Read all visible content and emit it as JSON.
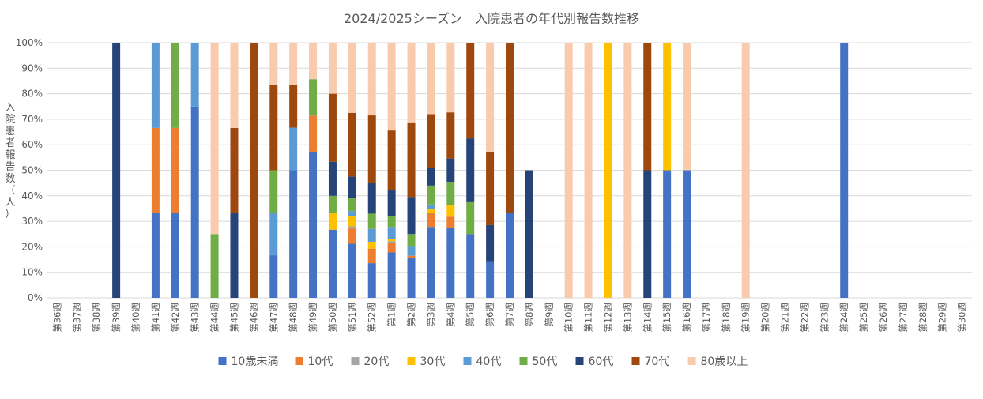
{
  "chart_data": {
    "type": "bar",
    "stacked": true,
    "title": "2024/2025シーズン　入院患者の年代別報告数推移",
    "ylabel": "入院患者報告数（人）",
    "xlabel": "",
    "ylim": [
      0,
      100
    ],
    "yticks": [
      "0%",
      "10%",
      "20%",
      "30%",
      "40%",
      "50%",
      "60%",
      "70%",
      "80%",
      "90%",
      "100%"
    ],
    "grid": true,
    "legend_position": "bottom",
    "categories": [
      "第36週",
      "第37週",
      "第38週",
      "第39週",
      "第40週",
      "第41週",
      "第42週",
      "第43週",
      "第44週",
      "第45週",
      "第46週",
      "第47週",
      "第48週",
      "第49週",
      "第50週",
      "第51週",
      "第52週",
      "第1週",
      "第2週",
      "第3週",
      "第4週",
      "第5週",
      "第6週",
      "第7週",
      "第8週",
      "第9週",
      "第10週",
      "第11週",
      "第12週",
      "第13週",
      "第14週",
      "第15週",
      "第16週",
      "第17週",
      "第18週",
      "第19週",
      "第20週",
      "第21週",
      "第22週",
      "第23週",
      "第24週",
      "第25週",
      "第26週",
      "第27週",
      "第28週",
      "第29週",
      "第30週"
    ],
    "series": [
      {
        "name": "10歳未満",
        "color": "#4472C4",
        "values": [
          0,
          0,
          0,
          0,
          0,
          33.3,
          33.3,
          75,
          0,
          0,
          0,
          16.7,
          50,
          57.1,
          26.7,
          21.2,
          13.6,
          17.8,
          15.7,
          27.8,
          27.3,
          25,
          14.3,
          33.3,
          0,
          0,
          0,
          0,
          0,
          0,
          0,
          50,
          50,
          0,
          0,
          0,
          0,
          0,
          0,
          0,
          100,
          0,
          0,
          0,
          0,
          0,
          0
        ]
      },
      {
        "name": "10代",
        "color": "#ED7D31",
        "values": [
          0,
          0,
          0,
          0,
          0,
          33.3,
          33.3,
          0,
          0,
          0,
          0,
          0,
          0,
          14.3,
          0,
          6,
          5.7,
          3.8,
          0.8,
          5.5,
          4.5,
          0,
          0,
          0,
          0,
          0,
          0,
          0,
          0,
          0,
          0,
          0,
          0,
          0,
          0,
          0,
          0,
          0,
          0,
          0,
          0,
          0,
          0,
          0,
          0,
          0,
          0
        ]
      },
      {
        "name": "20代",
        "color": "#A5A5A5",
        "values": [
          0,
          0,
          0,
          0,
          0,
          0,
          0,
          0,
          0,
          0,
          0,
          0,
          0,
          0,
          0,
          0.8,
          0,
          0.6,
          0,
          0,
          0,
          0,
          0,
          0,
          0,
          0,
          0,
          0,
          0,
          0,
          0,
          0,
          0,
          0,
          0,
          0,
          0,
          0,
          0,
          0,
          0,
          0,
          0,
          0,
          0,
          0,
          0
        ]
      },
      {
        "name": "30代",
        "color": "#FFC000",
        "values": [
          0,
          0,
          0,
          0,
          0,
          0,
          0,
          0,
          0,
          0,
          0,
          0,
          0,
          0,
          6.6,
          4,
          2.7,
          1,
          0,
          1.5,
          4.5,
          0,
          0,
          0,
          0,
          0,
          0,
          0,
          100,
          0,
          0,
          50,
          0,
          0,
          0,
          0,
          0,
          0,
          0,
          0,
          0,
          0,
          0,
          0,
          0,
          0,
          0
        ]
      },
      {
        "name": "40代",
        "color": "#5B9BD5",
        "values": [
          0,
          0,
          0,
          0,
          0,
          33.4,
          0,
          25,
          0,
          0,
          0,
          16.7,
          16.7,
          0,
          0,
          2,
          5,
          4.6,
          3.8,
          1.8,
          0,
          0,
          0,
          0,
          0,
          0,
          0,
          0,
          0,
          0,
          0,
          0,
          0,
          0,
          0,
          0,
          0,
          0,
          0,
          0,
          0,
          0,
          0,
          0,
          0,
          0,
          0
        ]
      },
      {
        "name": "50代",
        "color": "#70AD47",
        "values": [
          0,
          0,
          0,
          0,
          0,
          0,
          33.4,
          0,
          25,
          0,
          0,
          16.6,
          0,
          14.3,
          6.7,
          5,
          6,
          4.2,
          4.7,
          7.4,
          9.2,
          12.5,
          0,
          0,
          0,
          0,
          0,
          0,
          0,
          0,
          0,
          0,
          0,
          0,
          0,
          0,
          0,
          0,
          0,
          0,
          0,
          0,
          0,
          0,
          0,
          0,
          0
        ]
      },
      {
        "name": "60代",
        "color": "#264478",
        "values": [
          0,
          0,
          0,
          100,
          0,
          0,
          0,
          0,
          0,
          33.3,
          0,
          0,
          0,
          0,
          13.3,
          8.5,
          12,
          10.3,
          14.5,
          7,
          9.1,
          25,
          14.2,
          0,
          50,
          0,
          0,
          0,
          0,
          0,
          50,
          0,
          0,
          0,
          0,
          0,
          0,
          0,
          0,
          0,
          0,
          0,
          0,
          0,
          0,
          0,
          0
        ]
      },
      {
        "name": "70代",
        "color": "#9E480E",
        "values": [
          0,
          0,
          0,
          0,
          0,
          0,
          0,
          0,
          0,
          33.3,
          100,
          33.3,
          16.6,
          0,
          26.7,
          25,
          26.5,
          23.3,
          29,
          21,
          18.1,
          37.5,
          28.5,
          66.7,
          0,
          0,
          0,
          0,
          0,
          0,
          50,
          0,
          0,
          0,
          0,
          0,
          0,
          0,
          0,
          0,
          0,
          0,
          0,
          0,
          0,
          0,
          0
        ]
      },
      {
        "name": "80歳以上",
        "color": "#F8CBAD",
        "values": [
          0,
          0,
          0,
          0,
          0,
          0,
          0,
          0,
          75,
          33.4,
          0,
          16.7,
          16.7,
          14.3,
          20,
          27.5,
          28.5,
          34.4,
          31.5,
          28,
          27.3,
          0,
          43,
          0,
          0,
          0,
          100,
          100,
          0,
          100,
          0,
          0,
          50,
          0,
          0,
          100,
          0,
          0,
          0,
          0,
          0,
          0,
          0,
          0,
          0,
          0,
          0
        ]
      }
    ]
  }
}
